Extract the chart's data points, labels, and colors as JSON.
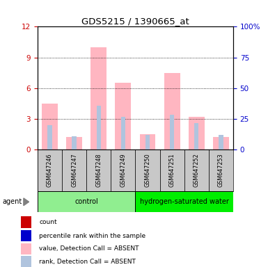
{
  "title": "GDS5215 / 1390665_at",
  "samples": [
    "GSM647246",
    "GSM647247",
    "GSM647248",
    "GSM647249",
    "GSM647250",
    "GSM647251",
    "GSM647252",
    "GSM647253"
  ],
  "groups": [
    {
      "name": "control",
      "color": "#90EE90",
      "indices": [
        0,
        1,
        2,
        3
      ]
    },
    {
      "name": "hydrogen-saturated water",
      "color": "#00EE00",
      "indices": [
        4,
        5,
        6,
        7
      ]
    }
  ],
  "left_ylim": [
    0,
    12
  ],
  "right_ylim": [
    0,
    100
  ],
  "left_yticks": [
    0,
    3,
    6,
    9,
    12
  ],
  "right_yticks": [
    0,
    25,
    50,
    75,
    100
  ],
  "right_yticklabels": [
    "0",
    "25",
    "50",
    "75",
    "100%"
  ],
  "left_tick_color": "#CC0000",
  "right_tick_color": "#0000CC",
  "pink_bars": [
    4.5,
    1.2,
    10.0,
    6.5,
    1.5,
    7.5,
    3.2,
    1.2
  ],
  "light_blue_bars_scaled": [
    2.4,
    1.3,
    4.3,
    3.2,
    1.4,
    3.4,
    2.6,
    1.4
  ],
  "legend_items": [
    {
      "color": "#CC0000",
      "label": "count"
    },
    {
      "color": "#0000CC",
      "label": "percentile rank within the sample"
    },
    {
      "color": "#FFB6C1",
      "label": "value, Detection Call = ABSENT"
    },
    {
      "color": "#B0C4DE",
      "label": "rank, Detection Call = ABSENT"
    }
  ],
  "sample_box_color": "#C8C8C8",
  "agent_label": "agent"
}
